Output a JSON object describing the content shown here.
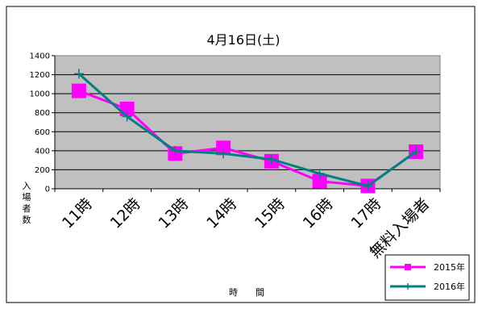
{
  "chart_data": {
    "type": "line",
    "title": "4月16日(土)",
    "xlabel": "時　　間",
    "ylabel": "入場者数",
    "categories": [
      "11時",
      "12時",
      "13時",
      "14時",
      "15時",
      "16時",
      "17時",
      "無料入場者"
    ],
    "ylim": [
      0,
      1400
    ],
    "yticks": [
      0,
      200,
      400,
      600,
      800,
      1000,
      1200,
      1400
    ],
    "grid": true,
    "legend": "bottom-right",
    "plot_background": "#c0c0c0",
    "series": [
      {
        "name": "2015年",
        "color": "#ff00ff",
        "marker": "square",
        "values": [
          1030,
          840,
          370,
          430,
          290,
          80,
          30,
          390
        ]
      },
      {
        "name": "2016年",
        "color": "#008080",
        "marker": "plus",
        "values": [
          1210,
          760,
          400,
          370,
          310,
          160,
          30,
          390
        ]
      }
    ]
  }
}
